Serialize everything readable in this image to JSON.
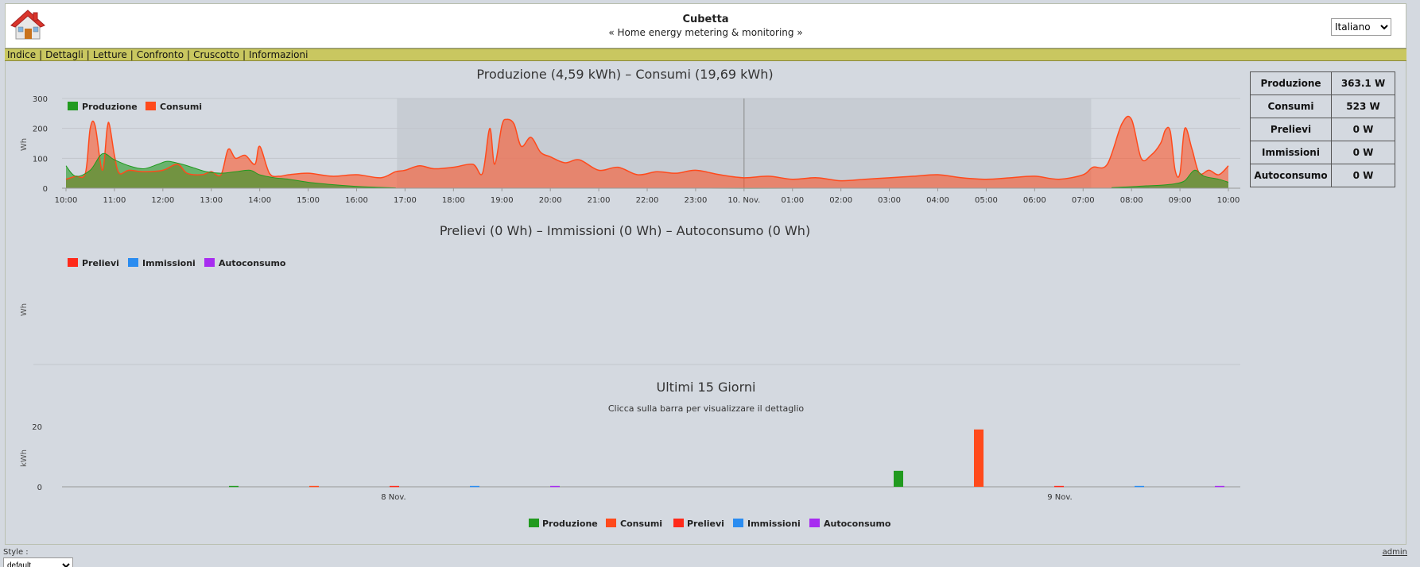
{
  "header": {
    "title": "Cubetta",
    "subtitle": "« Home energy metering & monitoring »",
    "language_selected": "Italiano"
  },
  "menu": {
    "items": [
      "Indice",
      "Dettagli",
      "Letture",
      "Confronto",
      "Cruscotto",
      "Informazioni"
    ]
  },
  "colors": {
    "produzione": "#219a1f",
    "consumi": "#ff4a1c",
    "prelievi": "#ff2a1a",
    "immissioni": "#2a8cf0",
    "autoconsumo": "#a72cf0",
    "menu_bar": "#c9c760"
  },
  "stats": [
    {
      "label": "Produzione",
      "value": "363.1 W"
    },
    {
      "label": "Consumi",
      "value": "523 W"
    },
    {
      "label": "Prelievi",
      "value": "0 W"
    },
    {
      "label": "Immissioni",
      "value": "0 W"
    },
    {
      "label": "Autoconsumo",
      "value": "0 W"
    }
  ],
  "footer": {
    "style_label": "Style :",
    "style_selected": "default",
    "admin_link": "admin"
  },
  "chart_data": [
    {
      "type": "area",
      "title": "Produzione (4,59 kWh) – Consumi (19,69 kWh)",
      "ylabel": "Wh",
      "ylim": [
        0,
        300
      ],
      "yticks": [
        0,
        100,
        200,
        300
      ],
      "xticks": [
        "10:00",
        "11:00",
        "12:00",
        "13:00",
        "14:00",
        "15:00",
        "16:00",
        "17:00",
        "18:00",
        "19:00",
        "20:00",
        "21:00",
        "22:00",
        "23:00",
        "10. Nov.",
        "01:00",
        "02:00",
        "03:00",
        "04:00",
        "05:00",
        "06:00",
        "07:00",
        "08:00",
        "09:00",
        "10:00"
      ],
      "night_band": [
        "16:50",
        "07:10"
      ],
      "day_divider": "10. Nov.",
      "legend_position": "top-left",
      "series": [
        {
          "name": "Produzione",
          "x": [
            0,
            0.2,
            0.5,
            0.75,
            1.0,
            1.3,
            1.6,
            1.9,
            2.1,
            2.4,
            2.6,
            2.9,
            3.2,
            3.5,
            3.8,
            4.0,
            4.3,
            4.6,
            5.0,
            5.5,
            6.0,
            6.4,
            6.8,
            7.0,
            21.2,
            21.6,
            22.0,
            22.3,
            22.6,
            22.9,
            23.1,
            23.3,
            23.5,
            23.8,
            24.0
          ],
          "y": [
            75,
            40,
            60,
            115,
            95,
            75,
            65,
            80,
            90,
            80,
            70,
            55,
            50,
            55,
            60,
            45,
            35,
            30,
            20,
            12,
            6,
            3,
            1,
            0,
            0,
            2,
            5,
            8,
            10,
            15,
            25,
            60,
            40,
            30,
            20
          ]
        },
        {
          "name": "Consumi",
          "x": [
            0,
            0.2,
            0.4,
            0.5,
            0.6,
            0.75,
            0.85,
            0.9,
            1.0,
            1.1,
            1.3,
            1.6,
            2.0,
            2.3,
            2.5,
            2.8,
            3.0,
            3.2,
            3.35,
            3.5,
            3.7,
            3.9,
            4.0,
            4.2,
            4.4,
            4.6,
            5.0,
            5.5,
            6.0,
            6.5,
            6.8,
            7.0,
            7.3,
            7.6,
            8.0,
            8.4,
            8.6,
            8.75,
            8.85,
            9.0,
            9.1,
            9.25,
            9.4,
            9.6,
            9.8,
            10.0,
            10.3,
            10.6,
            11.0,
            11.4,
            11.8,
            12.2,
            12.6,
            13.0,
            13.5,
            14.0,
            14.5,
            15.0,
            15.5,
            16.0,
            16.5,
            17.0,
            17.5,
            18.0,
            18.5,
            19.0,
            19.5,
            20.0,
            20.5,
            21.0,
            21.2,
            21.5,
            21.8,
            22.0,
            22.2,
            22.4,
            22.6,
            22.7,
            22.8,
            22.9,
            23.0,
            23.1,
            23.25,
            23.4,
            23.6,
            23.8,
            24.0
          ],
          "y": [
            30,
            40,
            50,
            200,
            210,
            60,
            200,
            210,
            110,
            50,
            60,
            55,
            60,
            80,
            50,
            45,
            55,
            45,
            130,
            100,
            110,
            80,
            140,
            50,
            40,
            45,
            50,
            40,
            45,
            35,
            55,
            60,
            75,
            65,
            70,
            80,
            50,
            200,
            80,
            210,
            230,
            215,
            140,
            170,
            120,
            105,
            85,
            95,
            60,
            70,
            45,
            55,
            50,
            60,
            45,
            35,
            40,
            30,
            35,
            25,
            30,
            35,
            40,
            45,
            35,
            30,
            35,
            40,
            30,
            45,
            70,
            80,
            215,
            230,
            100,
            110,
            150,
            195,
            190,
            60,
            50,
            200,
            130,
            50,
            60,
            45,
            75
          ]
        }
      ]
    },
    {
      "type": "line",
      "title": "Prelievi (0 Wh) – Immissioni (0 Wh) – Autoconsumo (0 Wh)",
      "ylabel": "Wh",
      "legend_position": "top-left",
      "series": [
        {
          "name": "Prelievi",
          "values": []
        },
        {
          "name": "Immissioni",
          "values": []
        },
        {
          "name": "Autoconsumo",
          "values": []
        }
      ]
    },
    {
      "type": "bar",
      "title": "Ultimi 15 Giorni",
      "subtitle": "Clicca sulla barra per visualizzare il dettaglio",
      "ylabel": "kWh",
      "ylim": [
        0,
        20
      ],
      "yticks": [
        0,
        20
      ],
      "categories": [
        "8 Nov.",
        "9 Nov."
      ],
      "legend_position": "bottom-center",
      "series": [
        {
          "name": "Produzione",
          "values": [
            0.3,
            5.3
          ]
        },
        {
          "name": "Consumi",
          "values": [
            0.3,
            19.0
          ]
        },
        {
          "name": "Prelievi",
          "values": [
            0.3,
            0.3
          ]
        },
        {
          "name": "Immissioni",
          "values": [
            0.3,
            0.3
          ]
        },
        {
          "name": "Autoconsumo",
          "values": [
            0.3,
            0.3
          ]
        }
      ]
    }
  ]
}
